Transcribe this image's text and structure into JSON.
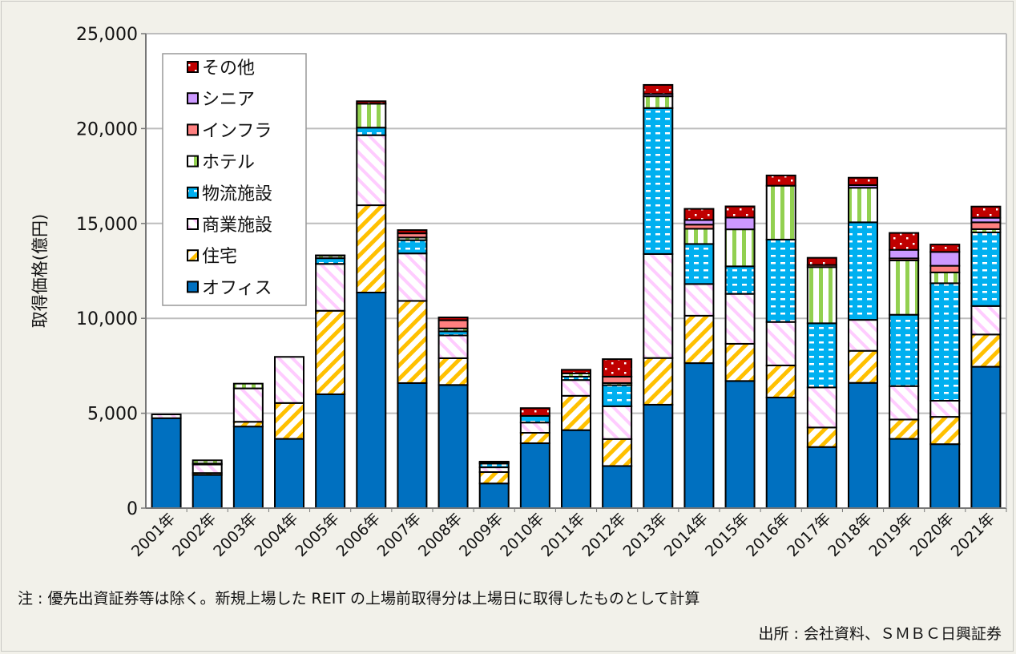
{
  "chart_data": {
    "type": "bar",
    "stacked": true,
    "title": "",
    "xlabel": "",
    "ylabel": "取得価格(億円)",
    "ylim": [
      0,
      25000
    ],
    "yticks": [
      0,
      5000,
      10000,
      15000,
      20000,
      25000
    ],
    "ytick_labels": [
      "0",
      "5,000",
      "10,000",
      "15,000",
      "20,000",
      "25,000"
    ],
    "grid": true,
    "legend_placement": "top-left",
    "categories": [
      "2001年",
      "2002年",
      "2003年",
      "2004年",
      "2005年",
      "2006年",
      "2007年",
      "2008年",
      "2009年",
      "2010年",
      "2011年",
      "2012年",
      "2013年",
      "2014年",
      "2015年",
      "2016年",
      "2017年",
      "2018年",
      "2019年",
      "2020年",
      "2021年"
    ],
    "series": [
      {
        "name": "オフィス",
        "color": "#0070C0",
        "pattern": "solid",
        "values": [
          4740,
          1750,
          4300,
          3650,
          6000,
          11360,
          6590,
          6490,
          1300,
          3420,
          4110,
          2220,
          5450,
          7640,
          6700,
          5830,
          3220,
          6600,
          3650,
          3370,
          7450
        ]
      },
      {
        "name": "住宅",
        "color": "#FFC000",
        "pattern": "diagonal-up",
        "values": [
          0,
          100,
          250,
          1890,
          4400,
          4600,
          4330,
          1410,
          600,
          550,
          1810,
          1420,
          2460,
          2500,
          1960,
          1690,
          1030,
          1690,
          1020,
          1440,
          1700
        ]
      },
      {
        "name": "商業施設",
        "color": "#FFCCFF",
        "pattern": "diagonal-down",
        "values": [
          200,
          450,
          1760,
          2430,
          2470,
          3690,
          2500,
          1200,
          250,
          540,
          830,
          1730,
          5480,
          1670,
          2630,
          2290,
          2110,
          1630,
          1760,
          850,
          1500
        ]
      },
      {
        "name": "物流施設",
        "color": "#00B0F0",
        "pattern": "dashes",
        "values": [
          0,
          50,
          0,
          0,
          300,
          400,
          700,
          220,
          200,
          350,
          180,
          1110,
          7690,
          2110,
          1450,
          4340,
          3380,
          5140,
          3760,
          6190,
          3880
        ]
      },
      {
        "name": "ホテル",
        "color": "#92D050",
        "pattern": "vertical",
        "values": [
          0,
          170,
          250,
          0,
          140,
          1260,
          140,
          150,
          50,
          0,
          170,
          110,
          620,
          800,
          1950,
          2840,
          2960,
          1820,
          2860,
          570,
          170
        ]
      },
      {
        "name": "インフラ",
        "color": "#FF8080",
        "pattern": "solid",
        "values": [
          0,
          0,
          0,
          0,
          0,
          0,
          220,
          430,
          0,
          0,
          0,
          340,
          0,
          220,
          0,
          0,
          110,
          0,
          110,
          350,
          360
        ]
      },
      {
        "name": "シニア",
        "color": "#CC99FF",
        "pattern": "solid",
        "values": [
          0,
          0,
          0,
          0,
          0,
          0,
          0,
          0,
          0,
          0,
          0,
          0,
          120,
          240,
          620,
          0,
          0,
          140,
          450,
          730,
          240
        ]
      },
      {
        "name": "その他",
        "color": "#C00000",
        "pattern": "dots",
        "values": [
          0,
          0,
          0,
          0,
          10,
          130,
          170,
          150,
          50,
          410,
          190,
          920,
          480,
          590,
          590,
          540,
          380,
          390,
          890,
          390,
          590
        ]
      }
    ]
  },
  "note": "注 : 優先出資証券等は除く。新規上場した REIT の上場前取得分は上場日に取得したものとして計算",
  "source": "出所 : 会社資料、ＳＭＢＣ日興証券"
}
